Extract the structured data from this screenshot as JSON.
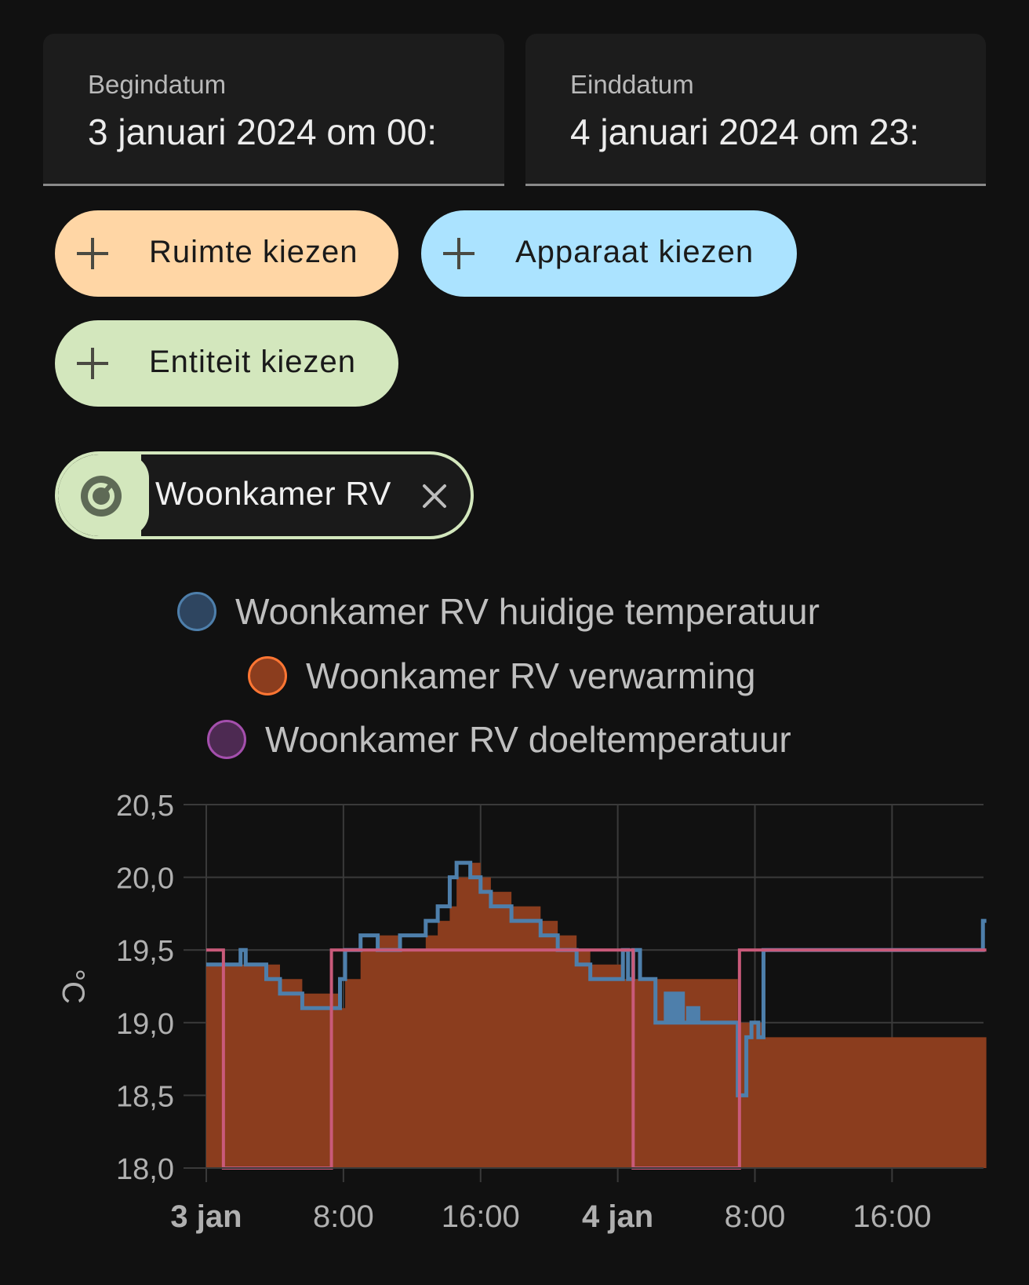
{
  "date_range": {
    "start_label": "Begindatum",
    "start_value": "3 januari 2024 om 00:",
    "end_label": "Einddatum",
    "end_value": "4 januari 2024 om 23:"
  },
  "target_picker": {
    "area_button": "Ruimte kiezen",
    "device_button": "Apparaat kiezen",
    "entity_button": "Entiteit kiezen",
    "area_color": "#ffd6a5",
    "device_color": "#abe3ff",
    "entity_color": "#d3e7bd"
  },
  "selected_entity": {
    "label": "Woonkamer RV",
    "icon": "thermostat-icon",
    "remove_icon": "close-icon"
  },
  "legend": [
    {
      "label": "Woonkamer RV huidige temperatuur",
      "color": "#4e7fab"
    },
    {
      "label": "Woonkamer RV verwarming",
      "color": "#ff7633"
    },
    {
      "label": "Woonkamer RV doeltemperatuur",
      "color": "#a44fad"
    }
  ],
  "chart_data": {
    "type": "line",
    "ylabel": "°C",
    "ylim": [
      18.0,
      20.5
    ],
    "yticks": [
      "20,5",
      "20,0",
      "19,5",
      "19,0",
      "18,5",
      "18,0"
    ],
    "xticks": [
      "3 jan",
      "8:00",
      "16:00",
      "4 jan",
      "8:00",
      "16:00"
    ],
    "xlim_hours": [
      0,
      45.5
    ],
    "series": [
      {
        "name": "Woonkamer RV huidige temperatuur",
        "color": "#4e7fab",
        "step": true,
        "points": [
          [
            0,
            19.4
          ],
          [
            2,
            19.4
          ],
          [
            2,
            19.5
          ],
          [
            2.3,
            19.5
          ],
          [
            2.3,
            19.4
          ],
          [
            3.5,
            19.4
          ],
          [
            3.5,
            19.3
          ],
          [
            4.3,
            19.3
          ],
          [
            4.3,
            19.2
          ],
          [
            5.6,
            19.2
          ],
          [
            5.6,
            19.1
          ],
          [
            7.8,
            19.1
          ],
          [
            7.8,
            19.3
          ],
          [
            8.1,
            19.3
          ],
          [
            8.1,
            19.5
          ],
          [
            9.0,
            19.5
          ],
          [
            9.0,
            19.6
          ],
          [
            10.0,
            19.6
          ],
          [
            10.0,
            19.5
          ],
          [
            11.3,
            19.5
          ],
          [
            11.3,
            19.6
          ],
          [
            12.8,
            19.6
          ],
          [
            12.8,
            19.7
          ],
          [
            13.5,
            19.7
          ],
          [
            13.5,
            19.8
          ],
          [
            14.2,
            19.8
          ],
          [
            14.2,
            20.0
          ],
          [
            14.6,
            20.0
          ],
          [
            14.6,
            20.1
          ],
          [
            15.4,
            20.1
          ],
          [
            15.4,
            20.0
          ],
          [
            16.0,
            20.0
          ],
          [
            16.0,
            19.9
          ],
          [
            16.6,
            19.9
          ],
          [
            16.6,
            19.8
          ],
          [
            17.8,
            19.8
          ],
          [
            17.8,
            19.7
          ],
          [
            19.5,
            19.7
          ],
          [
            19.5,
            19.6
          ],
          [
            20.5,
            19.6
          ],
          [
            20.5,
            19.5
          ],
          [
            21.6,
            19.5
          ],
          [
            21.6,
            19.4
          ],
          [
            22.4,
            19.4
          ],
          [
            22.4,
            19.3
          ],
          [
            24.3,
            19.3
          ],
          [
            24.3,
            19.5
          ],
          [
            24.6,
            19.5
          ],
          [
            24.6,
            19.3
          ],
          [
            24.9,
            19.3
          ],
          [
            24.9,
            19.5
          ],
          [
            25.3,
            19.5
          ],
          [
            25.3,
            19.3
          ],
          [
            26.2,
            19.3
          ],
          [
            26.2,
            19.0
          ],
          [
            26.8,
            19.0
          ],
          [
            26.8,
            19.2
          ],
          [
            27.0,
            19.2
          ],
          [
            27.0,
            19.0
          ],
          [
            27.2,
            19.0
          ],
          [
            27.2,
            19.2
          ],
          [
            27.4,
            19.2
          ],
          [
            27.4,
            19.0
          ],
          [
            27.6,
            19.0
          ],
          [
            27.6,
            19.2
          ],
          [
            27.8,
            19.2
          ],
          [
            27.8,
            19.0
          ],
          [
            28.1,
            19.0
          ],
          [
            28.1,
            19.1
          ],
          [
            28.3,
            19.1
          ],
          [
            28.3,
            19.0
          ],
          [
            28.5,
            19.0
          ],
          [
            28.5,
            19.1
          ],
          [
            28.7,
            19.1
          ],
          [
            28.7,
            19.0
          ],
          [
            31.0,
            19.0
          ],
          [
            31.0,
            18.5
          ],
          [
            31.5,
            18.5
          ],
          [
            31.5,
            18.9
          ],
          [
            31.8,
            18.9
          ],
          [
            31.8,
            19.0
          ],
          [
            32.2,
            19.0
          ],
          [
            32.2,
            18.9
          ],
          [
            32.5,
            18.9
          ],
          [
            32.5,
            19.5
          ],
          [
            45.3,
            19.5
          ],
          [
            45.3,
            19.7
          ],
          [
            45.5,
            19.7
          ]
        ]
      },
      {
        "name": "Woonkamer RV verwarming",
        "color": "#ff7633",
        "step": true,
        "fill": true,
        "points": [
          [
            0,
            19.4
          ],
          [
            2,
            19.4
          ],
          [
            3.5,
            19.4
          ],
          [
            4.3,
            19.3
          ],
          [
            5.6,
            19.2
          ],
          [
            7.8,
            19.1
          ],
          [
            8.1,
            19.3
          ],
          [
            9.0,
            19.5
          ],
          [
            10.0,
            19.6
          ],
          [
            11.3,
            19.5
          ],
          [
            12.8,
            19.6
          ],
          [
            13.5,
            19.7
          ],
          [
            14.2,
            19.8
          ],
          [
            14.6,
            20.0
          ],
          [
            15.4,
            20.1
          ],
          [
            16.0,
            20.0
          ],
          [
            16.6,
            19.9
          ],
          [
            17.8,
            19.8
          ],
          [
            19.5,
            19.7
          ],
          [
            20.5,
            19.6
          ],
          [
            21.6,
            19.5
          ],
          [
            22.4,
            19.4
          ],
          [
            24.3,
            19.3
          ],
          [
            26.2,
            19.3
          ],
          [
            31.0,
            19.0
          ],
          [
            32.5,
            18.9
          ],
          [
            45.5,
            19.5
          ]
        ]
      },
      {
        "name": "Woonkamer RV doeltemperatuur",
        "color": "#a44fad",
        "step": true,
        "points": [
          [
            0,
            19.5
          ],
          [
            1,
            19.5
          ],
          [
            1,
            18.0
          ],
          [
            7.3,
            18.0
          ],
          [
            7.3,
            19.5
          ],
          [
            24.9,
            19.5
          ],
          [
            24.9,
            18.0
          ],
          [
            31.1,
            18.0
          ],
          [
            31.1,
            19.5
          ],
          [
            45.5,
            19.5
          ]
        ]
      }
    ],
    "grid": true
  }
}
